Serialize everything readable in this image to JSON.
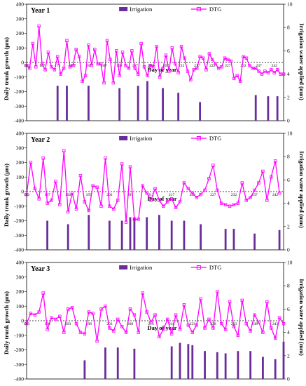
{
  "figure": {
    "y_left_label": "Daily trunk growth (μm)",
    "y_right_label": "Irrigation water applied (mm)",
    "x_label": "Day of year",
    "legend_irrigation": "Irrigation",
    "legend_dtg": "DTG"
  },
  "colors": {
    "dtg": "#ff00ff",
    "irrigation": "#6a2c9a",
    "baseline": "#000000"
  },
  "chart_data": [
    {
      "type": "bar+line",
      "title": "Year 1",
      "x": [
        162,
        163,
        164,
        165,
        166,
        167,
        168,
        169,
        170,
        171,
        172,
        173,
        174,
        175,
        176,
        177,
        178,
        179,
        180,
        181,
        182,
        183,
        184,
        185,
        186,
        187,
        188,
        189,
        190,
        191,
        192,
        193,
        194,
        195,
        196,
        197,
        198,
        199,
        200,
        201,
        202,
        203,
        204,
        205,
        206,
        207,
        208,
        209,
        210,
        211,
        212,
        213,
        214,
        215,
        216,
        217,
        218,
        219,
        220,
        221,
        222,
        223,
        224,
        225,
        226,
        227,
        228,
        229,
        230,
        231,
        232,
        233,
        234,
        235,
        236,
        237,
        238,
        239,
        240,
        241,
        242,
        243,
        244,
        245
      ],
      "x_tick_labels": [
        "162",
        "167",
        "172",
        "177",
        "182",
        "187",
        "192",
        "197",
        "202",
        "207",
        "212",
        "217",
        "222",
        "227",
        "232",
        "237",
        "242"
      ],
      "dtg": [
        -20,
        -40,
        130,
        -30,
        250,
        -10,
        -50,
        70,
        -30,
        -50,
        40,
        -80,
        -40,
        150,
        -30,
        -20,
        90,
        40,
        -130,
        -90,
        120,
        -20,
        90,
        -10,
        -10,
        -140,
        150,
        20,
        -140,
        80,
        -90,
        70,
        -20,
        -40,
        80,
        -40,
        -80,
        130,
        -30,
        -90,
        -20,
        -30,
        110,
        -100,
        -40,
        50,
        -60,
        100,
        -10,
        -70,
        110,
        30,
        -60,
        -120,
        -50,
        -40,
        40,
        30,
        -50,
        60,
        20,
        -10,
        -40,
        -30,
        30,
        20,
        10,
        -110,
        -90,
        -130,
        40,
        30,
        -20,
        -40,
        -40,
        -60,
        -80,
        -60,
        -70,
        -50,
        -70,
        -50,
        -80,
        -80
      ],
      "dtg_draw_order": "sequential",
      "irrigation": [
        {
          "day": 172,
          "mm": 3
        },
        {
          "day": 175,
          "mm": 3
        },
        {
          "day": 182,
          "mm": 3
        },
        {
          "day": 192,
          "mm": 2.8
        },
        {
          "day": 198,
          "mm": 3
        },
        {
          "day": 201,
          "mm": 3.4
        },
        {
          "day": 206,
          "mm": 2.8
        },
        {
          "day": 211,
          "mm": 2.4
        },
        {
          "day": 218,
          "mm": 1.6
        },
        {
          "day": 236,
          "mm": 2.2
        },
        {
          "day": 240,
          "mm": 2.1
        },
        {
          "day": 243,
          "mm": 2.1
        }
      ],
      "ylim_left": [
        -400,
        400
      ],
      "ylim_right": [
        0,
        10
      ],
      "y_left_ticks": [
        "400",
        "300",
        "200",
        "100",
        "0",
        "-100",
        "-200",
        "-300",
        "-400"
      ],
      "y_right_ticks": [
        "10",
        "8",
        "6",
        "4",
        "2",
        "0"
      ],
      "grid": false
    },
    {
      "type": "bar+line",
      "title": "Year 2",
      "x_tick_labels": [
        "182",
        "187",
        "192",
        "197",
        "202",
        "207",
        "212",
        "217",
        "222",
        "227",
        "232",
        "237",
        "242"
      ],
      "dtg_points": [
        [
          182,
          -20
        ],
        [
          183,
          200
        ],
        [
          184,
          20
        ],
        [
          185,
          -50
        ],
        [
          186,
          230
        ],
        [
          187,
          -80
        ],
        [
          188,
          -60
        ],
        [
          189,
          70
        ],
        [
          190,
          -90
        ],
        [
          191,
          280
        ],
        [
          192,
          -140
        ],
        [
          193,
          -10
        ],
        [
          194,
          -120
        ],
        [
          195,
          110
        ],
        [
          196,
          -70
        ],
        [
          197,
          -130
        ],
        [
          198,
          40
        ],
        [
          199,
          30
        ],
        [
          200,
          -100
        ],
        [
          201,
          230
        ],
        [
          202,
          -100
        ],
        [
          203,
          -120
        ],
        [
          204,
          -60
        ],
        [
          205,
          190
        ],
        [
          206,
          -210
        ],
        [
          207,
          170
        ],
        [
          208,
          -190
        ],
        [
          209,
          -190
        ],
        [
          210,
          40
        ],
        [
          211,
          -10
        ],
        [
          212,
          -60
        ],
        [
          213,
          20
        ],
        [
          214,
          -60
        ],
        [
          215,
          -100
        ],
        [
          216,
          -70
        ],
        [
          217,
          -50
        ],
        [
          218,
          -110
        ],
        [
          219,
          -70
        ],
        [
          220,
          60
        ],
        [
          221,
          20
        ],
        [
          222,
          -10
        ],
        [
          223,
          -40
        ],
        [
          224,
          -20
        ],
        [
          225,
          10
        ],
        [
          226,
          90
        ],
        [
          227,
          180
        ],
        [
          228,
          10
        ],
        [
          229,
          -80
        ],
        [
          230,
          -90
        ],
        [
          231,
          -100
        ],
        [
          232,
          -90
        ],
        [
          233,
          -80
        ],
        [
          234,
          60
        ],
        [
          235,
          -60
        ],
        [
          236,
          -40
        ],
        [
          237,
          10
        ],
        [
          238,
          60
        ],
        [
          239,
          140
        ],
        [
          240,
          -60
        ],
        [
          241,
          100
        ],
        [
          242,
          210
        ],
        [
          243,
          -10
        ]
      ],
      "irrigation": [
        {
          "day": 187,
          "mm": 2.5
        },
        {
          "day": 192,
          "mm": 2.2
        },
        {
          "day": 197,
          "mm": 3
        },
        {
          "day": 202,
          "mm": 2.5
        },
        {
          "day": 205,
          "mm": 2.5
        },
        {
          "day": 207,
          "mm": 2.8
        },
        {
          "day": 208,
          "mm": 2.8
        },
        {
          "day": 211,
          "mm": 2.8
        },
        {
          "day": 214,
          "mm": 3
        },
        {
          "day": 217,
          "mm": 2.5
        },
        {
          "day": 220,
          "mm": 2.5
        },
        {
          "day": 224,
          "mm": 2.2
        },
        {
          "day": 230,
          "mm": 1.8
        },
        {
          "day": 232,
          "mm": 1.8
        },
        {
          "day": 237,
          "mm": 1.4
        },
        {
          "day": 243,
          "mm": 1.7
        }
      ],
      "ylim_left": [
        -400,
        400
      ],
      "ylim_right": [
        0,
        10
      ],
      "y_left_ticks": [
        "400",
        "300",
        "200",
        "100",
        "0",
        "-100",
        "-200",
        "-300",
        "-400"
      ],
      "y_right_ticks": [
        "10",
        "8",
        "6",
        "4",
        "2",
        "0"
      ],
      "grid": false
    },
    {
      "type": "bar+line",
      "title": "Year 3",
      "x_tick_labels": [
        "183",
        "188",
        "193",
        "198",
        "203",
        "208",
        "213",
        "218",
        "223",
        "228",
        "233",
        "238",
        "243"
      ],
      "dtg_points": [
        [
          183,
          -20
        ],
        [
          184,
          50
        ],
        [
          185,
          40
        ],
        [
          186,
          60
        ],
        [
          187,
          190
        ],
        [
          188,
          -60
        ],
        [
          189,
          20
        ],
        [
          190,
          10
        ],
        [
          191,
          30
        ],
        [
          192,
          -80
        ],
        [
          193,
          80
        ],
        [
          194,
          90
        ],
        [
          195,
          -20
        ],
        [
          196,
          -80
        ],
        [
          197,
          -90
        ],
        [
          198,
          60
        ],
        [
          199,
          50
        ],
        [
          200,
          -140
        ],
        [
          201,
          80
        ],
        [
          202,
          100
        ],
        [
          203,
          -50
        ],
        [
          204,
          -70
        ],
        [
          205,
          10
        ],
        [
          206,
          -40
        ],
        [
          207,
          -80
        ],
        [
          208,
          80
        ],
        [
          209,
          40
        ],
        [
          210,
          -80
        ],
        [
          211,
          190
        ],
        [
          212,
          60
        ],
        [
          213,
          -10
        ],
        [
          214,
          40
        ],
        [
          215,
          -110
        ],
        [
          216,
          -60
        ],
        [
          217,
          10
        ],
        [
          218,
          -90
        ],
        [
          219,
          40
        ],
        [
          220,
          -60
        ],
        [
          221,
          110
        ],
        [
          222,
          -30
        ],
        [
          223,
          -80
        ],
        [
          224,
          -30
        ],
        [
          225,
          150
        ],
        [
          226,
          -50
        ],
        [
          227,
          10
        ],
        [
          228,
          -50
        ],
        [
          229,
          200
        ],
        [
          230,
          -20
        ],
        [
          231,
          -60
        ],
        [
          232,
          130
        ],
        [
          233,
          -40
        ],
        [
          234,
          -100
        ],
        [
          235,
          140
        ],
        [
          236,
          -20
        ],
        [
          237,
          -70
        ],
        [
          238,
          40
        ],
        [
          239,
          -10
        ],
        [
          240,
          -80
        ],
        [
          241,
          130
        ],
        [
          242,
          -50
        ],
        [
          243,
          -120
        ],
        [
          244,
          20
        ],
        [
          245,
          -20
        ]
      ],
      "irrigation": [
        {
          "day": 197,
          "mm": 1.6
        },
        {
          "day": 202,
          "mm": 2.7
        },
        {
          "day": 205,
          "mm": 2.7
        },
        {
          "day": 209,
          "mm": 2.6
        },
        {
          "day": 218,
          "mm": 2.8
        },
        {
          "day": 220,
          "mm": 3.1
        },
        {
          "day": 222,
          "mm": 3
        },
        {
          "day": 223,
          "mm": 2.9
        },
        {
          "day": 226,
          "mm": 2.4
        },
        {
          "day": 229,
          "mm": 2.3
        },
        {
          "day": 231,
          "mm": 2.2
        },
        {
          "day": 234,
          "mm": 2.4
        },
        {
          "day": 237,
          "mm": 2.4
        },
        {
          "day": 240,
          "mm": 1.9
        },
        {
          "day": 243,
          "mm": 1.7
        },
        {
          "day": 245,
          "mm": 3.2
        }
      ],
      "ylim_left": [
        -400,
        400
      ],
      "ylim_right": [
        0,
        10
      ],
      "y_left_ticks": [
        "400",
        "300",
        "200",
        "100",
        "0",
        "-100",
        "-200",
        "-300",
        "-400"
      ],
      "y_right_ticks": [
        "10",
        "8",
        "6",
        "4",
        "2",
        "0"
      ],
      "grid": false
    }
  ]
}
